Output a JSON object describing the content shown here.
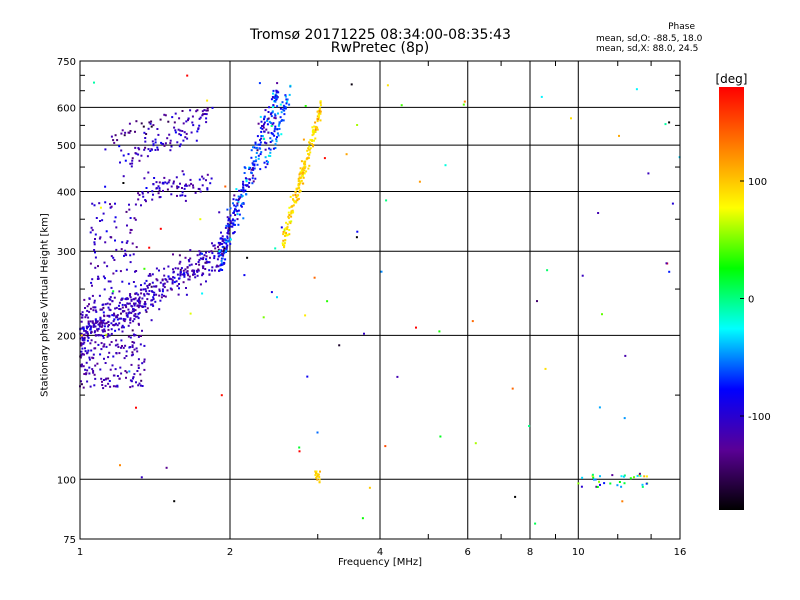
{
  "header": {
    "title_line1": "Tromsø 20171225 08:34:00-08:35:43",
    "title_line2": "RwPretec (8p)"
  },
  "phase_info": {
    "title": "Phase",
    "line1": "mean, sd,O: -88.5, 18.0",
    "line2": "mean, sd,X:  88.0, 24.5"
  },
  "chart_data": {
    "type": "scatter",
    "title": "Tromsø 20171225 08:34:00-08:35:43",
    "subtitle": "RwPretec (8p)",
    "xlabel": "Frequency [MHz]",
    "ylabel": "Stationary phase Virtual Height [km]",
    "x_scale": "log",
    "y_scale": "log",
    "xlim": [
      1,
      16
    ],
    "ylim": [
      75,
      750
    ],
    "x_ticks": [
      1,
      2,
      4,
      6,
      8,
      10,
      16
    ],
    "y_ticks": [
      75,
      100,
      200,
      300,
      400,
      500,
      600,
      750
    ],
    "grid": true,
    "colorbar": {
      "label": "[deg]",
      "range": [
        -180,
        180
      ],
      "ticks": [
        -100,
        0,
        100
      ],
      "colors": [
        "#000000",
        "#5a0096",
        "#0000ff",
        "#00ffff",
        "#00ff00",
        "#ffff00",
        "#ff7f00",
        "#ff0000"
      ]
    },
    "clusters": [
      {
        "kind": "band",
        "x0": 1.0,
        "x1": 1.95,
        "y0": 200,
        "y1": 300,
        "spread": 0.045,
        "count": 420,
        "phase": -110,
        "phase_sd": 15
      },
      {
        "kind": "blob",
        "x0": 1.0,
        "x1": 1.35,
        "y0": 155,
        "y1": 240,
        "count": 260,
        "phase": -115,
        "phase_sd": 12
      },
      {
        "kind": "blob",
        "x0": 1.05,
        "x1": 1.3,
        "y0": 240,
        "y1": 380,
        "count": 90,
        "phase": -110,
        "phase_sd": 12
      },
      {
        "kind": "band",
        "x0": 1.3,
        "x1": 1.85,
        "y0": 400,
        "y1": 420,
        "spread": 0.03,
        "count": 80,
        "phase": -108,
        "phase_sd": 12
      },
      {
        "kind": "band",
        "x0": 1.2,
        "x1": 1.8,
        "y0": 455,
        "y1": 560,
        "spread": 0.03,
        "count": 80,
        "phase": -105,
        "phase_sd": 15
      },
      {
        "kind": "band",
        "x0": 1.15,
        "x1": 1.85,
        "y0": 520,
        "y1": 600,
        "spread": 0.02,
        "count": 50,
        "phase": -125,
        "phase_sd": 18
      },
      {
        "kind": "band",
        "x0": 1.9,
        "x1": 2.5,
        "y0": 290,
        "y1": 640,
        "spread": 0.05,
        "count": 280,
        "phase": -80,
        "phase_sd": 25
      },
      {
        "kind": "band",
        "x0": 2.35,
        "x1": 2.65,
        "y0": 450,
        "y1": 650,
        "spread": 0.03,
        "count": 60,
        "phase": -60,
        "phase_sd": 20
      },
      {
        "kind": "band",
        "x0": 2.55,
        "x1": 3.05,
        "y0": 315,
        "y1": 600,
        "spread": 0.03,
        "count": 190,
        "phase": 95,
        "phase_sd": 12
      },
      {
        "kind": "blob",
        "x0": 2.95,
        "x1": 3.05,
        "y0": 98,
        "y1": 104,
        "count": 15,
        "phase": 95,
        "phase_sd": 10
      },
      {
        "kind": "blob",
        "x0": 10.0,
        "x1": 13.8,
        "y0": 96,
        "y1": 103,
        "count": 35,
        "phase": -20,
        "phase_sd": 80
      },
      {
        "kind": "scatter",
        "x0": 1.0,
        "x1": 16.0,
        "y0": 80,
        "y1": 700,
        "count": 95,
        "phase": 0,
        "phase_sd": 110
      }
    ]
  }
}
